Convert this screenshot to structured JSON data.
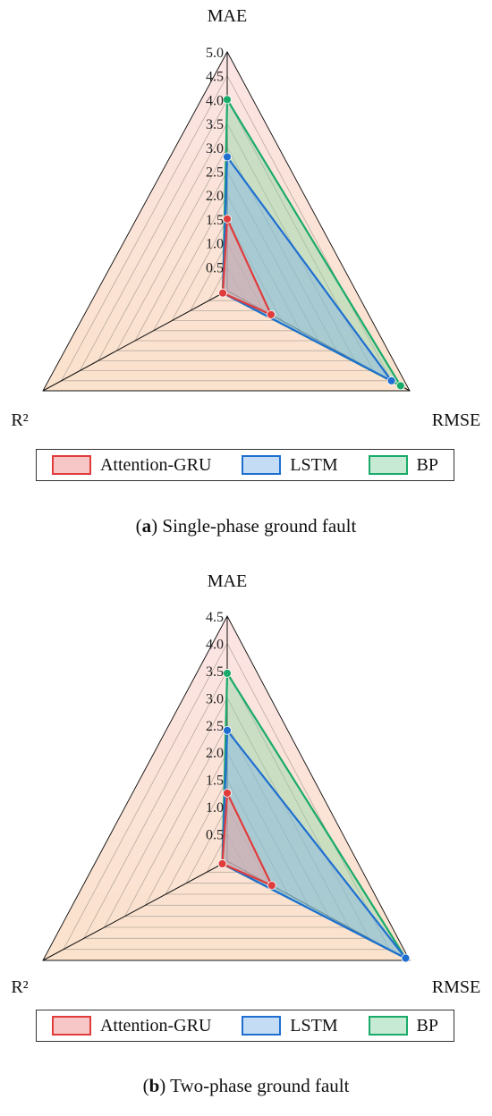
{
  "chart_data": [
    {
      "type": "radar",
      "axes": [
        "MAE",
        "RMSE",
        "R²"
      ],
      "rlim": [
        0,
        5.0
      ],
      "ticks": [
        "0.5",
        "1.0",
        "1.5",
        "2.0",
        "2.5",
        "3.0",
        "3.5",
        "4.0",
        "4.5",
        "5.0"
      ],
      "tick_values": [
        0.5,
        1.0,
        1.5,
        2.0,
        2.5,
        3.0,
        3.5,
        4.0,
        4.5,
        5.0
      ],
      "series": [
        {
          "name": "Attention-GRU",
          "color": "#e03c3c",
          "fill": "#f2a0a0",
          "values": [
            1.5,
            1.2,
            0.12
          ]
        },
        {
          "name": "LSTM",
          "color": "#1f6fd0",
          "fill": "#7fb3e8",
          "values": [
            2.8,
            4.5,
            0.12
          ]
        },
        {
          "name": "BP",
          "color": "#1aaa6a",
          "fill": "#8fd6a8",
          "values": [
            4.0,
            4.75,
            0.12
          ]
        }
      ],
      "caption_label": "a",
      "caption_text": "Single-phase ground fault"
    },
    {
      "type": "radar",
      "axes": [
        "MAE",
        "RMSE",
        "R²"
      ],
      "rlim": [
        0,
        4.5
      ],
      "ticks": [
        "0.5",
        "1.0",
        "1.5",
        "2.0",
        "2.5",
        "3.0",
        "3.5",
        "4.0",
        "4.5"
      ],
      "tick_values": [
        0.5,
        1.0,
        1.5,
        2.0,
        2.5,
        3.0,
        3.5,
        4.0,
        4.5
      ],
      "series": [
        {
          "name": "Attention-GRU",
          "color": "#e03c3c",
          "fill": "#f2a0a0",
          "values": [
            1.25,
            1.1,
            0.12
          ]
        },
        {
          "name": "LSTM",
          "color": "#1f6fd0",
          "fill": "#7fb3e8",
          "values": [
            2.4,
            4.4,
            0.12
          ]
        },
        {
          "name": "BP",
          "color": "#1aaa6a",
          "fill": "#8fd6a8",
          "values": [
            3.45,
            4.4,
            0.12
          ]
        }
      ],
      "caption_label": "b",
      "caption_text": "Two-phase ground fault"
    }
  ]
}
